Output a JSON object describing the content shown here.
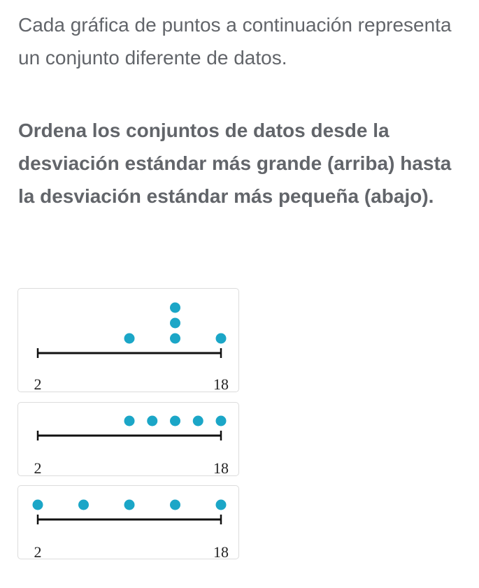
{
  "intro_text": "Cada gráfica de puntos a continuación representa un conjunto diferente de datos.",
  "instruction_text": "Ordena los conjuntos de datos desde la desviación estándar más grande (arriba) hasta la desviación estándar más pequeña (abajo).",
  "colors": {
    "dot": "#1ba6c7",
    "axis": "#111111",
    "text": "#62656a"
  },
  "chart_data": [
    {
      "type": "scatter",
      "title": "",
      "xlabel": "",
      "ylabel": "",
      "xlim": [
        2,
        18
      ],
      "tick_labels": [
        "2",
        "18"
      ],
      "points": [
        {
          "x": 10,
          "count": 1
        },
        {
          "x": 14,
          "count": 3
        },
        {
          "x": 18,
          "count": 1
        }
      ]
    },
    {
      "type": "scatter",
      "title": "",
      "xlabel": "",
      "ylabel": "",
      "xlim": [
        2,
        18
      ],
      "tick_labels": [
        "2",
        "18"
      ],
      "points": [
        {
          "x": 10,
          "count": 1
        },
        {
          "x": 12,
          "count": 1
        },
        {
          "x": 14,
          "count": 1
        },
        {
          "x": 16,
          "count": 1
        },
        {
          "x": 18,
          "count": 1
        }
      ]
    },
    {
      "type": "scatter",
      "title": "",
      "xlabel": "",
      "ylabel": "",
      "xlim": [
        2,
        18
      ],
      "tick_labels": [
        "2",
        "18"
      ],
      "points": [
        {
          "x": 2,
          "count": 1
        },
        {
          "x": 6,
          "count": 1
        },
        {
          "x": 10,
          "count": 1
        },
        {
          "x": 14,
          "count": 1
        },
        {
          "x": 18,
          "count": 1
        }
      ]
    }
  ]
}
